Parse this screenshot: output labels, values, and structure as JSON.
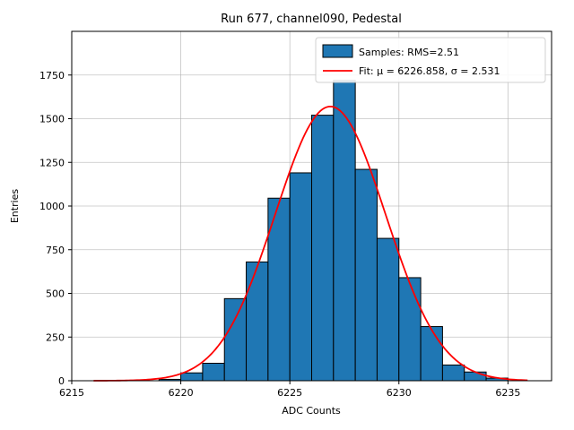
{
  "chart_data": {
    "type": "bar",
    "title": "Run 677, channel090, Pedestal",
    "xlabel": "ADC Counts",
    "ylabel": "Entries",
    "xlim": [
      6215,
      6237
    ],
    "ylim": [
      0,
      2000
    ],
    "xticks": [
      6215,
      6220,
      6225,
      6230,
      6235
    ],
    "yticks": [
      0,
      250,
      500,
      750,
      1000,
      1250,
      1500,
      1750
    ],
    "grid": true,
    "bin_width": 1,
    "bins": [
      {
        "left": 6219,
        "count": 8
      },
      {
        "left": 6220,
        "count": 45
      },
      {
        "left": 6221,
        "count": 100
      },
      {
        "left": 6222,
        "count": 470
      },
      {
        "left": 6223,
        "count": 680
      },
      {
        "left": 6224,
        "count": 1045
      },
      {
        "left": 6225,
        "count": 1190
      },
      {
        "left": 6226,
        "count": 1520
      },
      {
        "left": 6227,
        "count": 1720
      },
      {
        "left": 6228,
        "count": 1210
      },
      {
        "left": 6229,
        "count": 815
      },
      {
        "left": 6230,
        "count": 590
      },
      {
        "left": 6231,
        "count": 310
      },
      {
        "left": 6232,
        "count": 90
      },
      {
        "left": 6233,
        "count": 50
      },
      {
        "left": 6234,
        "count": 15
      }
    ],
    "fit": {
      "type": "gaussian",
      "mu": 6226.858,
      "sigma": 2.531,
      "amplitude": 1570
    },
    "legend": {
      "position": "upper right",
      "entries": [
        {
          "label": "Samples: RMS=2.51",
          "marker": "patch",
          "color": "#1f77b4"
        },
        {
          "label": "Fit: μ = 6226.858, σ = 2.531",
          "marker": "line",
          "color": "#ff0000"
        }
      ]
    },
    "colors": {
      "bar_fill": "#1f77b4",
      "bar_edge": "#000000",
      "fit_line": "#ff0000",
      "grid": "#b0b0b0"
    }
  }
}
